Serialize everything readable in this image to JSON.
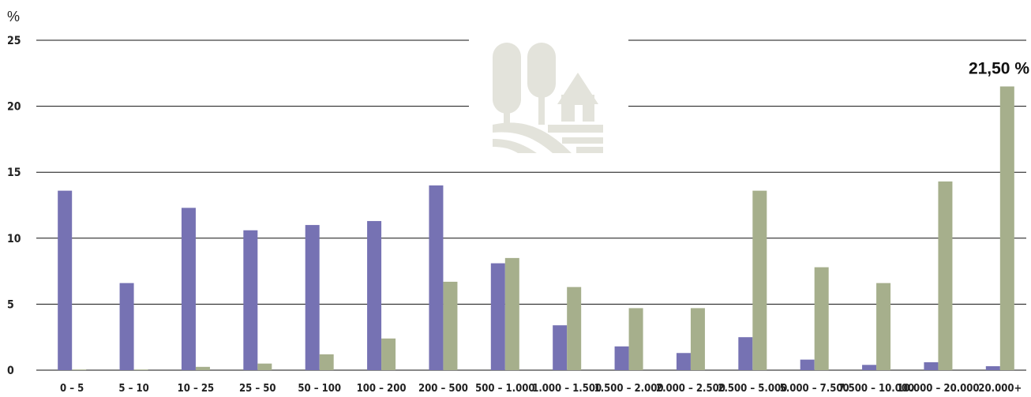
{
  "chart_data": {
    "type": "bar",
    "ylabel": "%",
    "ylim": [
      0,
      25
    ],
    "yticks": [
      0,
      5,
      10,
      15,
      20,
      25
    ],
    "grid": true,
    "categories": [
      "0 – 5",
      "5 – 10",
      "10 – 25",
      "25 – 50",
      "50 – 100",
      "100 – 200",
      "200 – 500",
      "500 – 1.000",
      "1.000 – 1.500",
      "1.500 – 2.000",
      "2.000 – 2.500",
      "2.500 – 5.000",
      "5.000 – 7.500",
      "7.500 – 10.000",
      "10.000 – 20.000",
      "20.000+"
    ],
    "series": [
      {
        "color": "#7672b3",
        "values": [
          13.6,
          6.6,
          12.3,
          10.6,
          11.0,
          11.3,
          14.0,
          8.1,
          3.4,
          1.8,
          1.3,
          2.5,
          0.8,
          0.4,
          0.6,
          0.3
        ]
      },
      {
        "color": "#a6af8c",
        "values": [
          0.05,
          0.05,
          0.25,
          0.5,
          1.2,
          2.4,
          6.7,
          8.5,
          6.3,
          4.7,
          4.7,
          13.6,
          7.8,
          6.6,
          14.3,
          21.5
        ]
      }
    ],
    "annotation": {
      "text": "21,50 %",
      "series_index": 1,
      "category_index": 15
    },
    "icon": {
      "name": "farmland-icon",
      "color": "#e3e3db"
    }
  }
}
